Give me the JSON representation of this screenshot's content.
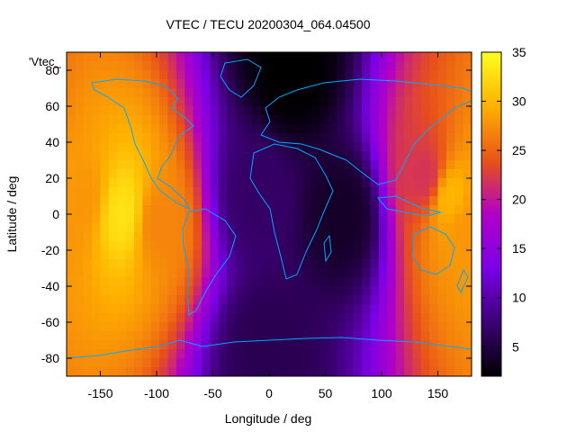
{
  "chart_data": {
    "type": "heatmap",
    "title": "VTEC / TECU 20200304_064.04500",
    "xlabel": "Longitude / deg",
    "ylabel": "Latitude / deg",
    "key_label": "'Vtec_",
    "xlim": [
      -180,
      180
    ],
    "ylim": [
      -90,
      90
    ],
    "x_ticks": [
      -150,
      -100,
      -50,
      0,
      50,
      100,
      150
    ],
    "y_ticks": [
      -80,
      -60,
      -40,
      -20,
      0,
      20,
      40,
      60,
      80
    ],
    "colorbar": {
      "min": 2,
      "max": 35,
      "ticks": [
        5,
        10,
        15,
        20,
        25,
        30,
        35
      ]
    },
    "grid": false,
    "overlay": "coastlines",
    "colors": {
      "coastline": "#00aaff",
      "palette": [
        "#000000",
        "#3a0070",
        "#7a00e6",
        "#b000c8",
        "#e8501a",
        "#ffb000",
        "#ffff20"
      ]
    },
    "features": [
      {
        "lon": -130,
        "lat": 0,
        "tec": 33
      },
      {
        "lon": -165,
        "lat": 8,
        "tec": 28
      },
      {
        "lon": -100,
        "lat": -5,
        "tec": 27
      },
      {
        "lon": 160,
        "lat": 10,
        "tec": 30
      },
      {
        "lon": 175,
        "lat": -8,
        "tec": 28
      },
      {
        "lon": 140,
        "lat": 20,
        "tec": 22
      },
      {
        "lon": 20,
        "lat": 80,
        "tec": 2
      },
      {
        "lon": 65,
        "lat": 0,
        "tec": 4
      },
      {
        "lon": -10,
        "lat": 10,
        "tec": 7
      },
      {
        "lon": 0,
        "lat": -75,
        "tec": 6
      }
    ]
  }
}
